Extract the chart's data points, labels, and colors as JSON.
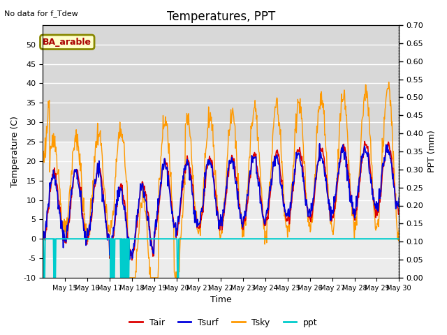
{
  "title": "Temperatures, PPT",
  "subtitle": "No data for f_Tdew",
  "annotation": "BA_arable",
  "xlabel": "Time",
  "ylabel_left": "Temperature (C)",
  "ylabel_right": "PPT (mm)",
  "ylim_left": [
    -10,
    55
  ],
  "ylim_right": [
    0.0,
    0.7
  ],
  "yticks_left": [
    -10,
    -5,
    0,
    5,
    10,
    15,
    20,
    25,
    30,
    35,
    40,
    45,
    50
  ],
  "yticks_right": [
    0.0,
    0.05,
    0.1,
    0.15,
    0.2,
    0.25,
    0.3,
    0.35,
    0.4,
    0.45,
    0.5,
    0.55,
    0.6,
    0.65,
    0.7
  ],
  "colors": {
    "Tair": "#dd0000",
    "Tsurf": "#0000dd",
    "Tsky": "#ff9900",
    "ppt": "#00cccc",
    "background_top": "#d8d8d8",
    "background_bot": "#e8e8e8",
    "annotation_bg": "#ffffcc",
    "annotation_border": "#888800"
  },
  "n_days": 16,
  "date_start": 14,
  "date_end": 30
}
